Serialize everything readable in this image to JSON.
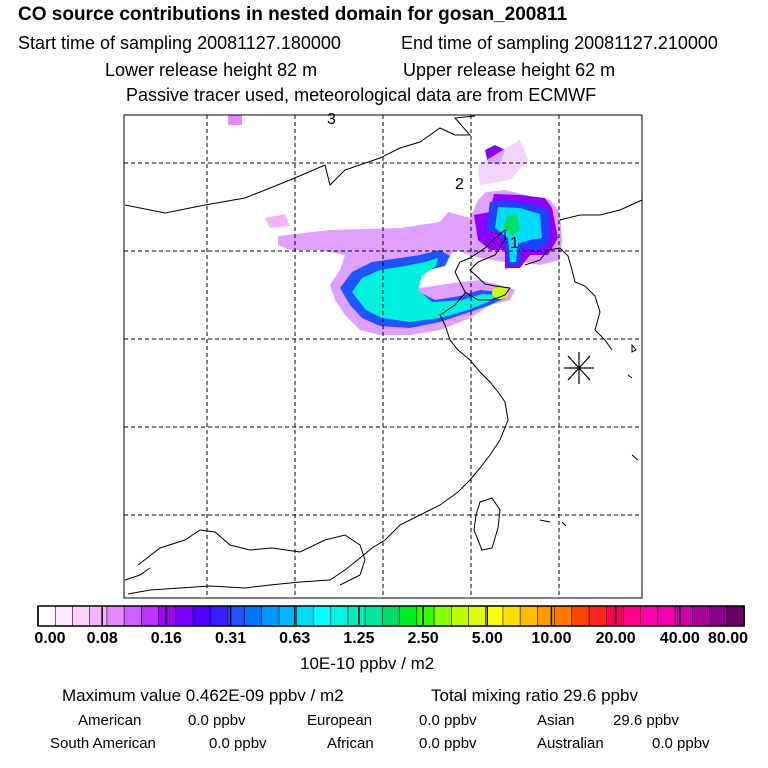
{
  "header": {
    "title": "CO  source contributions in nested domain for gosan_200811",
    "start": "Start time of sampling 20081127.180000",
    "end": "End time of sampling 20081127.210000",
    "lower": "Lower release height   82 m",
    "upper": "Upper release height   62 m",
    "passive": "Passive tracer used, meteorological data are from ECMWF"
  },
  "map": {
    "labels": [
      "3",
      "2",
      "1"
    ],
    "marker": "receptor-star"
  },
  "colorbar": {
    "ticks": [
      "0.00",
      "0.08",
      "0.16",
      "0.31",
      "0.63",
      "1.25",
      "2.50",
      "5.00",
      "10.00",
      "20.00",
      "40.00",
      "80.00"
    ],
    "unit": "10E-10 ppbv / m2",
    "colors": [
      "#ffffff",
      "#fde8ff",
      "#fbd0ff",
      "#f5b3ff",
      "#e38aff",
      "#d060ff",
      "#bb33ff",
      "#a000ff",
      "#7a00ff",
      "#5500ff",
      "#3322ff",
      "#1f55ff",
      "#0077ff",
      "#0099ff",
      "#00b8ff",
      "#00dcff",
      "#00ffff",
      "#00f4e0",
      "#00eebb",
      "#00e69a",
      "#00dd66",
      "#00ee22",
      "#33ff00",
      "#88ff00",
      "#bbff00",
      "#ddff00",
      "#ffff00",
      "#ffdd00",
      "#ffbb00",
      "#ff9900",
      "#ff7700",
      "#ff4400",
      "#ff2222",
      "#ff0055",
      "#ff0088",
      "#ff00aa",
      "#ee00b0",
      "#cc00a8",
      "#aa0099",
      "#880088",
      "#660066"
    ]
  },
  "summary": {
    "max_label": "Maximum value  0.462E-09 ppbv / m2",
    "total_label": "Total mixing ratio       29.6 ppbv",
    "rows": [
      [
        {
          "name": "American",
          "value": "0.0 ppbv"
        },
        {
          "name": "European",
          "value": "0.0 ppbv"
        },
        {
          "name": "Asian",
          "value": "29.6 ppbv"
        }
      ],
      [
        {
          "name": "South American",
          "value": "0.0 ppbv"
        },
        {
          "name": "African",
          "value": "0.0 ppbv"
        },
        {
          "name": "Australian",
          "value": "0.0 ppbv"
        }
      ]
    ]
  }
}
